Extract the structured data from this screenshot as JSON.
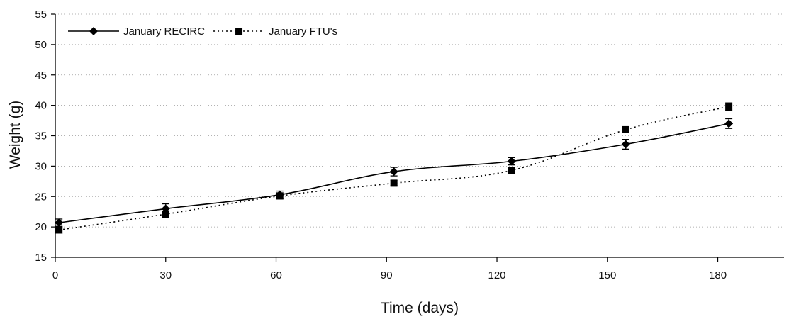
{
  "chart_data": {
    "type": "line",
    "title": "",
    "xlabel": "Time (days)",
    "ylabel": "Weight (g)",
    "xlim": [
      0,
      198
    ],
    "ylim": [
      15,
      55
    ],
    "xticks": [
      0,
      30,
      60,
      90,
      120,
      150,
      180
    ],
    "yticks": [
      15,
      20,
      25,
      30,
      35,
      40,
      45,
      50,
      55
    ],
    "grid": "horizontal dotted",
    "legend_position": "top-left",
    "series": [
      {
        "name": "January RECIRC",
        "color": "#000000",
        "line_style": "solid",
        "marker": "diamond",
        "points": [
          {
            "x": 1,
            "y": 20.7,
            "err": 0.6
          },
          {
            "x": 30,
            "y": 23.0,
            "err": 0.8
          },
          {
            "x": 61,
            "y": 25.3,
            "err": 0.6
          },
          {
            "x": 92,
            "y": 29.1,
            "err": 0.7
          },
          {
            "x": 124,
            "y": 30.8,
            "err": 0.6
          },
          {
            "x": 155,
            "y": 33.6,
            "err": 0.8
          },
          {
            "x": 183,
            "y": 37.0,
            "err": 0.8
          }
        ]
      },
      {
        "name": "January FTU's",
        "color": "#000000",
        "line_style": "dotted",
        "marker": "square",
        "points": [
          {
            "x": 1,
            "y": 19.5,
            "err": 0.5
          },
          {
            "x": 30,
            "y": 22.1,
            "err": 0.5
          },
          {
            "x": 61,
            "y": 25.1,
            "err": 0.5
          },
          {
            "x": 92,
            "y": 27.2,
            "err": 0.4
          },
          {
            "x": 124,
            "y": 29.3,
            "err": 0.5
          },
          {
            "x": 155,
            "y": 36.0,
            "err": 0.5
          },
          {
            "x": 183,
            "y": 39.8,
            "err": 0.6
          }
        ]
      }
    ]
  }
}
